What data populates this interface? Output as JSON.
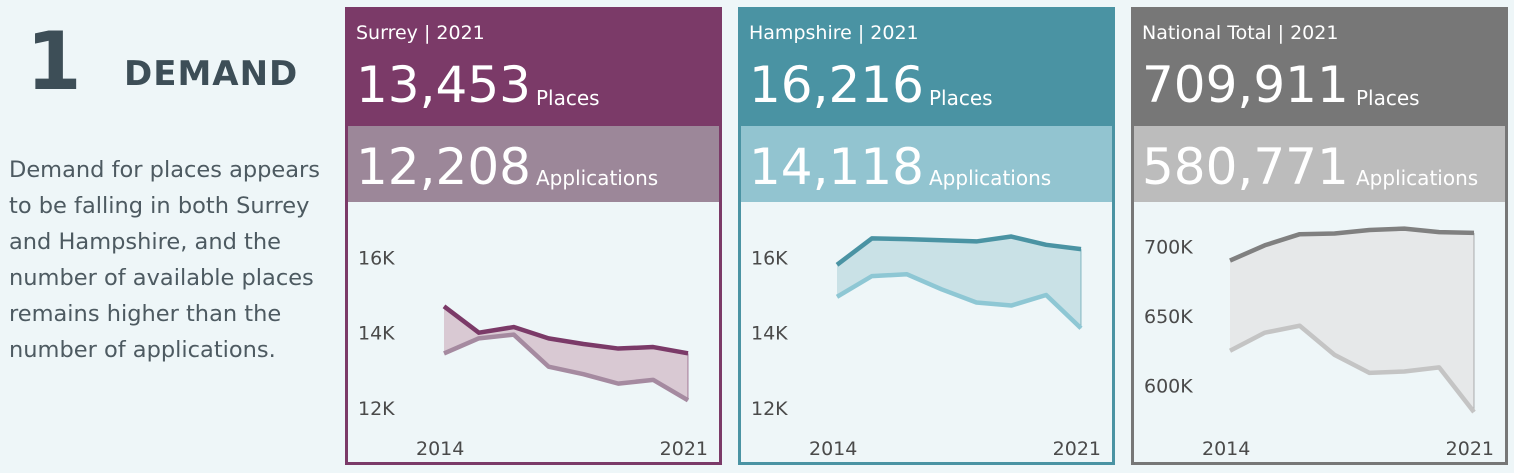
{
  "section": {
    "number": "1",
    "title": "DEMAND",
    "description": "Demand for places appears to be falling in both Surrey and Hampshire, and the number of available places remains higher than the number of applications."
  },
  "panels": [
    {
      "label": "Surrey | 2021",
      "places_value": "13,453",
      "places_unit": "Places",
      "applications_value": "12,208",
      "applications_unit": "Applications",
      "colors": {
        "border": "#7b3a68",
        "header": "#7b3a68",
        "sub": "#9c8799",
        "places_line": "#7b3a68",
        "apps_line": "#a58aa0",
        "fill": "#d9c9d3"
      }
    },
    {
      "label": "Hampshire | 2021",
      "places_value": "16,216",
      "places_unit": "Places",
      "applications_value": "14,118",
      "applications_unit": "Applications",
      "colors": {
        "border": "#4a93a3",
        "header": "#4a93a3",
        "sub": "#92c4d0",
        "places_line": "#4a93a3",
        "apps_line": "#8ec7d4",
        "fill": "#c9e1e6"
      }
    },
    {
      "label": "National Total | 2021",
      "places_value": "709,911",
      "places_unit": "Places",
      "applications_value": "580,771",
      "applications_unit": "Applications",
      "colors": {
        "border": "#777777",
        "header": "#777777",
        "sub": "#bcbcbc",
        "places_line": "#808080",
        "apps_line": "#c4c4c4",
        "fill": "#e6e8e9"
      }
    }
  ],
  "chart_data": [
    {
      "type": "area",
      "x": [
        2014,
        2015,
        2016,
        2017,
        2018,
        2019,
        2020,
        2021
      ],
      "xtick_labels": [
        "2014",
        "2021"
      ],
      "ylim": [
        11500,
        17200
      ],
      "yticks": [
        12000,
        14000,
        16000
      ],
      "ytick_labels": [
        "12K",
        "14K",
        "16K"
      ],
      "series": [
        {
          "values": [
            14700,
            14000,
            14150,
            13850,
            13700,
            13580,
            13620,
            13453
          ]
        },
        {
          "values": [
            13450,
            13850,
            13950,
            13100,
            12900,
            12650,
            12750,
            12208
          ]
        }
      ]
    },
    {
      "type": "area",
      "x": [
        2014,
        2015,
        2016,
        2017,
        2018,
        2019,
        2020,
        2021
      ],
      "xtick_labels": [
        "2014",
        "2021"
      ],
      "ylim": [
        11500,
        17200
      ],
      "yticks": [
        12000,
        14000,
        16000
      ],
      "ytick_labels": [
        "12K",
        "14K",
        "16K"
      ],
      "series": [
        {
          "values": [
            15800,
            16500,
            16480,
            16450,
            16420,
            16550,
            16330,
            16216
          ]
        },
        {
          "values": [
            14950,
            15500,
            15550,
            15150,
            14800,
            14720,
            15000,
            14118
          ]
        }
      ]
    },
    {
      "type": "area",
      "x": [
        2014,
        2015,
        2016,
        2017,
        2018,
        2019,
        2020,
        2021
      ],
      "xtick_labels": [
        "2014",
        "2021"
      ],
      "ylim": [
        570000,
        725000
      ],
      "yticks": [
        600000,
        650000,
        700000
      ],
      "ytick_labels": [
        "600K",
        "650K",
        "700K"
      ],
      "series": [
        {
          "values": [
            690000,
            701000,
            709000,
            709500,
            712000,
            713000,
            710500,
            709911
          ]
        },
        {
          "values": [
            625000,
            638000,
            643000,
            622000,
            609000,
            610000,
            613000,
            580771
          ]
        }
      ]
    }
  ]
}
